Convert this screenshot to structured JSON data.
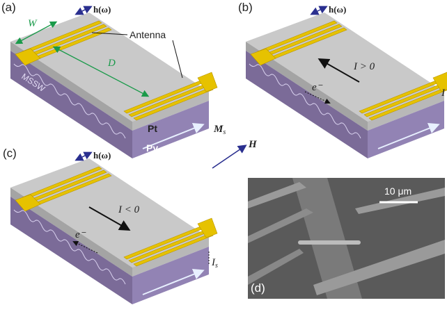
{
  "panel_a": {
    "label": "(a)",
    "field": "h(ω)",
    "width": "W",
    "distance": "D",
    "antenna": "Antenna",
    "wave": "MSSW",
    "top_layer": "Pt",
    "bottom_layer": "Py",
    "magnetization": {
      "symbol": "M",
      "subscript": "s"
    }
  },
  "panel_b": {
    "label": "(b)",
    "field": "h(ω)",
    "current": "I > 0",
    "electron": "e⁻",
    "spin_current": "I"
  },
  "panel_c": {
    "label": "(c)",
    "field": "h(ω)",
    "current": "I < 0",
    "electron": "e⁻",
    "spin_current": {
      "symbol": "I",
      "subscript": "s"
    }
  },
  "external_field": "H",
  "panel_d": {
    "label": "(d)",
    "scale_bar": "10 μm"
  }
}
